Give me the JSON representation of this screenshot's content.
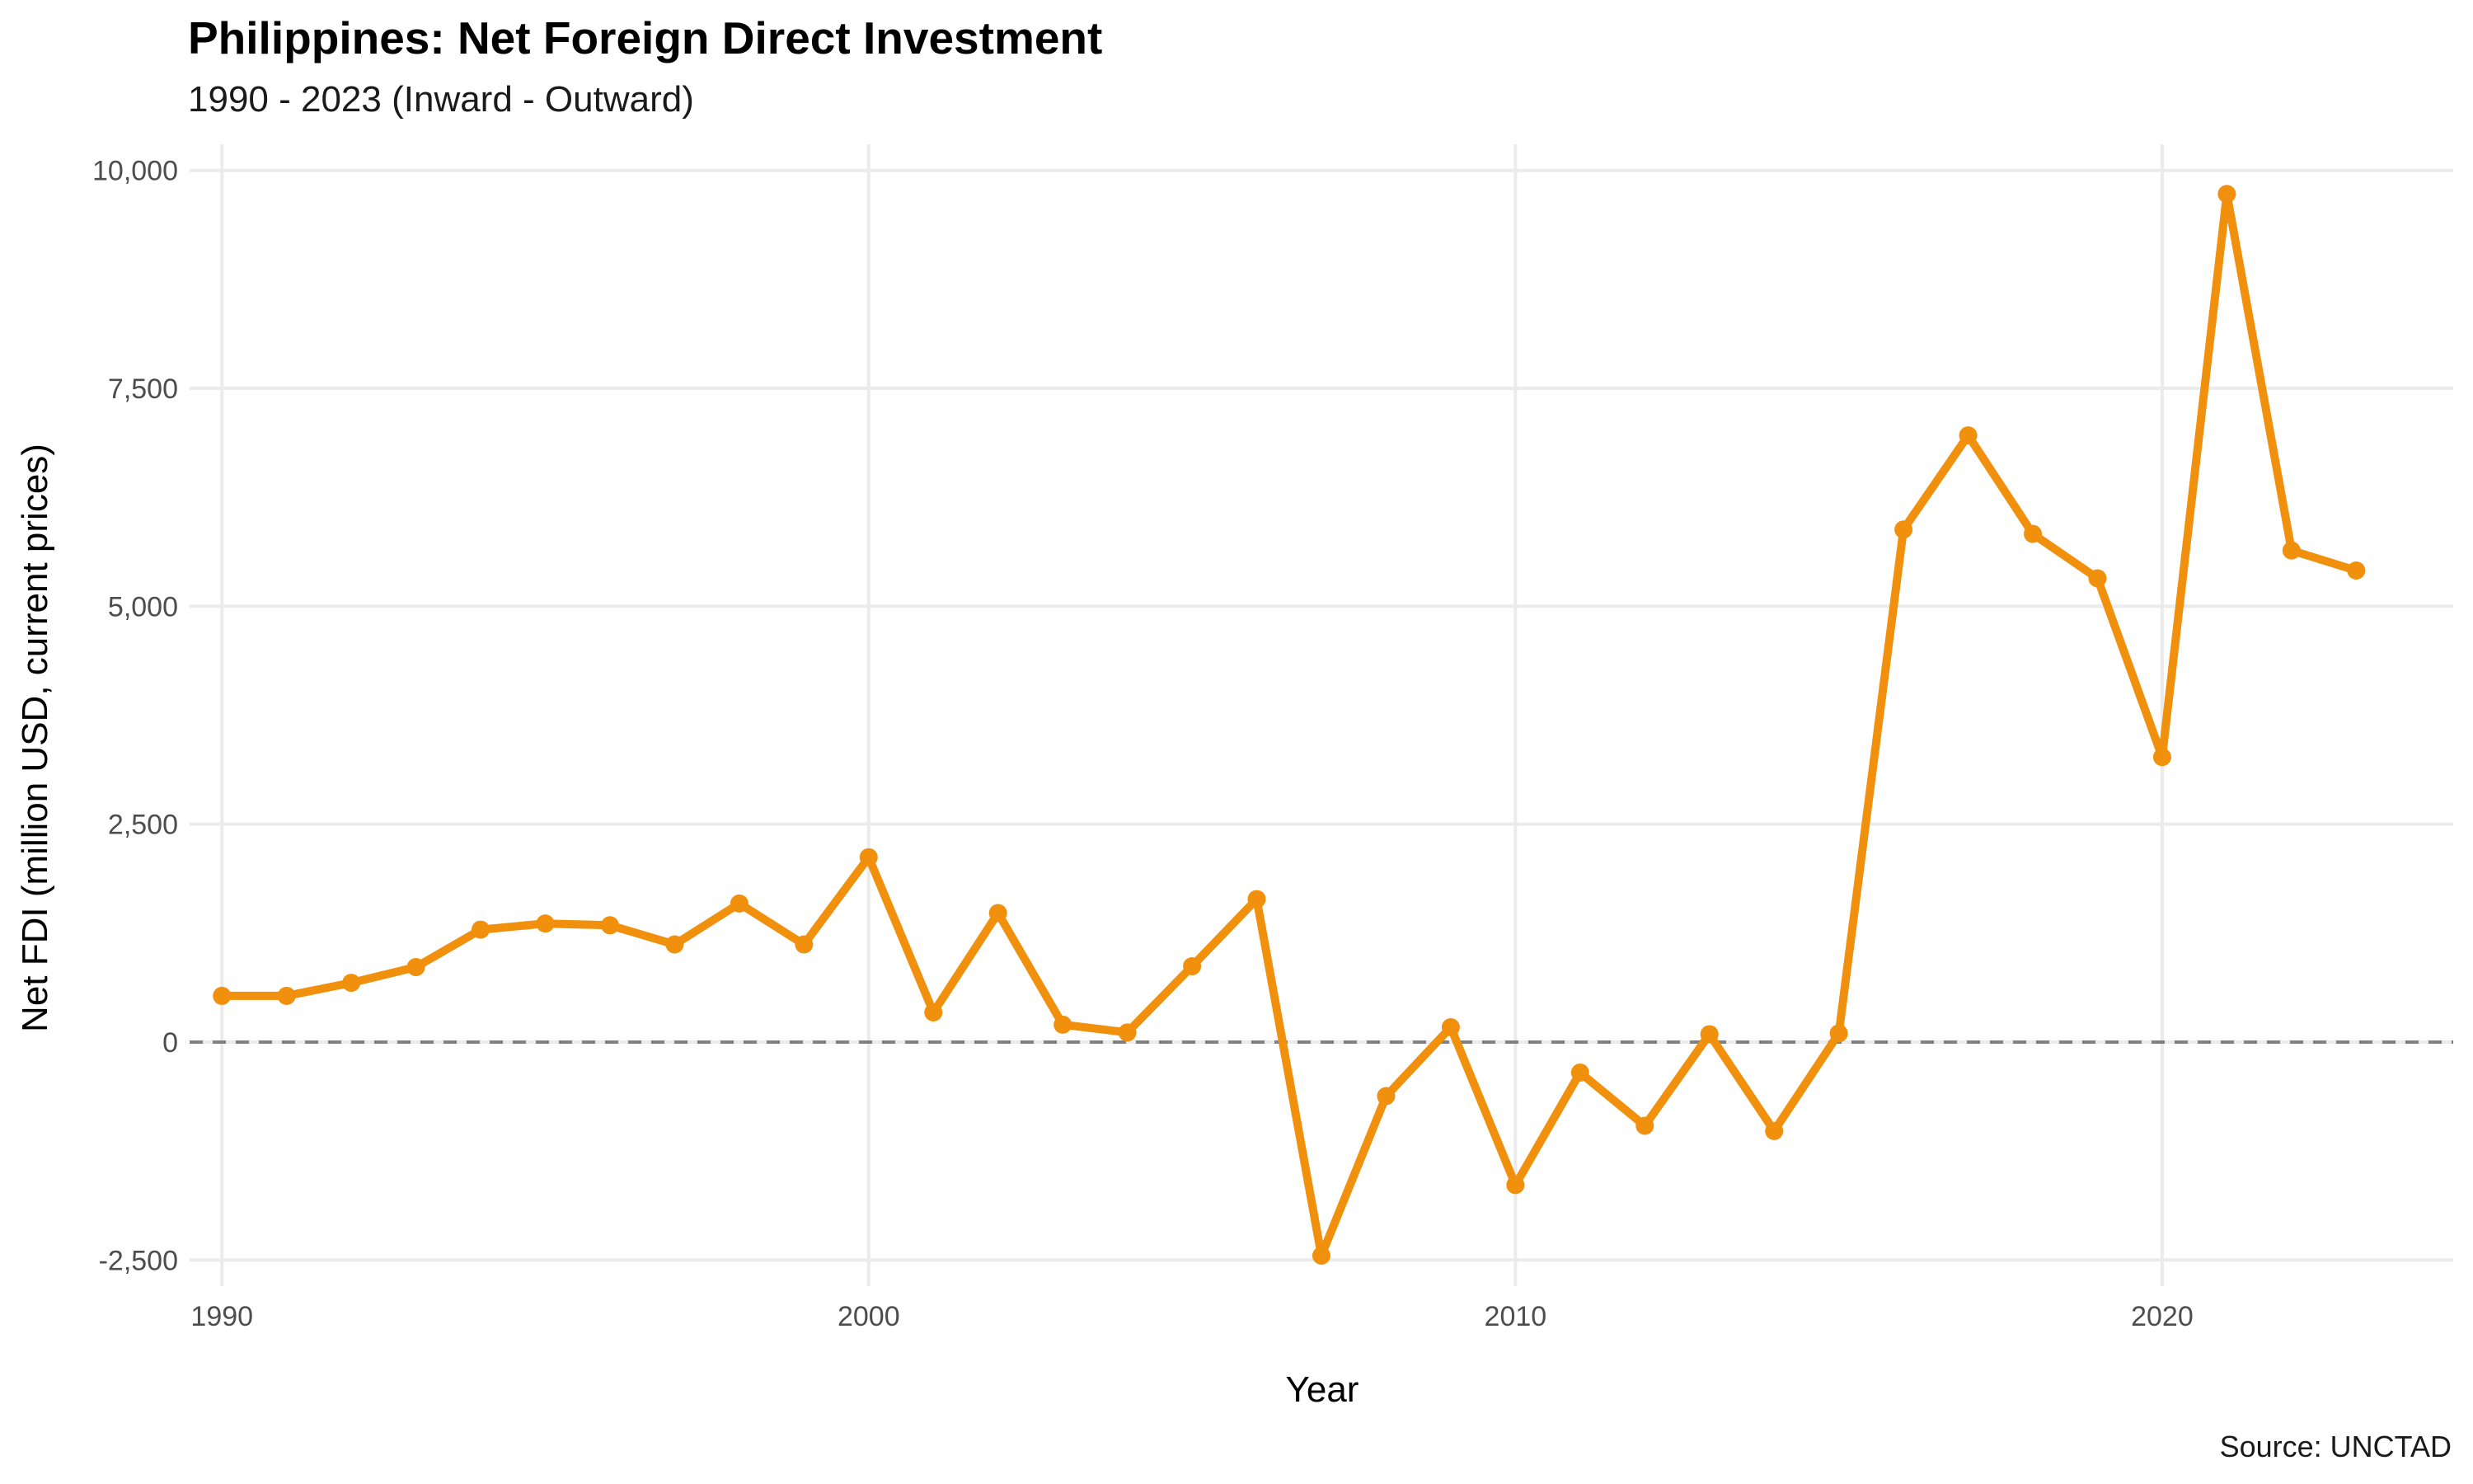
{
  "title": "Philippines: Net Foreign Direct Investment",
  "subtitle": "1990 - 2023 (Inward - Outward)",
  "caption": "Source: UNCTAD",
  "colors": {
    "line": "#F0900C",
    "grid": "#ebebeb",
    "zero_line": "#808080"
  },
  "chart_data": {
    "type": "line",
    "title": "Philippines: Net Foreign Direct Investment",
    "subtitle": "1990 - 2023 (Inward - Outward)",
    "xlabel": "Year",
    "ylabel": "Net FDI (million USD, current prices)",
    "xlim": [
      1989.5,
      2024.5
    ],
    "ylim": [
      -2800,
      10300
    ],
    "x_ticks": [
      1990,
      2000,
      2010,
      2020
    ],
    "x_tick_labels": [
      "1990",
      "2000",
      "2010",
      "2020"
    ],
    "y_ticks": [
      -2500,
      0,
      2500,
      5000,
      7500,
      10000
    ],
    "y_tick_labels": [
      "-2,500",
      "0",
      "2,500",
      "5,000",
      "7,500",
      "10,000"
    ],
    "grid": true,
    "reference_line": {
      "y": 0,
      "style": "dashed"
    },
    "legend": "none",
    "series": [
      {
        "x": [
          1990,
          1991,
          1992,
          1993,
          1994,
          1995,
          1996,
          1997,
          1998,
          1999,
          2000,
          2001,
          2002,
          2003,
          2004,
          2005,
          2006,
          2007,
          2008,
          2009,
          2010,
          2011,
          2012,
          2013,
          2014,
          2015,
          2016,
          2017,
          2018,
          2019,
          2020,
          2021,
          2022,
          2023
        ],
        "values": [
          530,
          530,
          680,
          860,
          1290,
          1360,
          1340,
          1120,
          1590,
          1120,
          2120,
          340,
          1480,
          200,
          110,
          870,
          1640,
          -2450,
          -620,
          170,
          -1640,
          -350,
          -960,
          90,
          -1020,
          100,
          5880,
          6960,
          5830,
          5320,
          3270,
          9730,
          5640,
          5410
        ]
      }
    ]
  }
}
